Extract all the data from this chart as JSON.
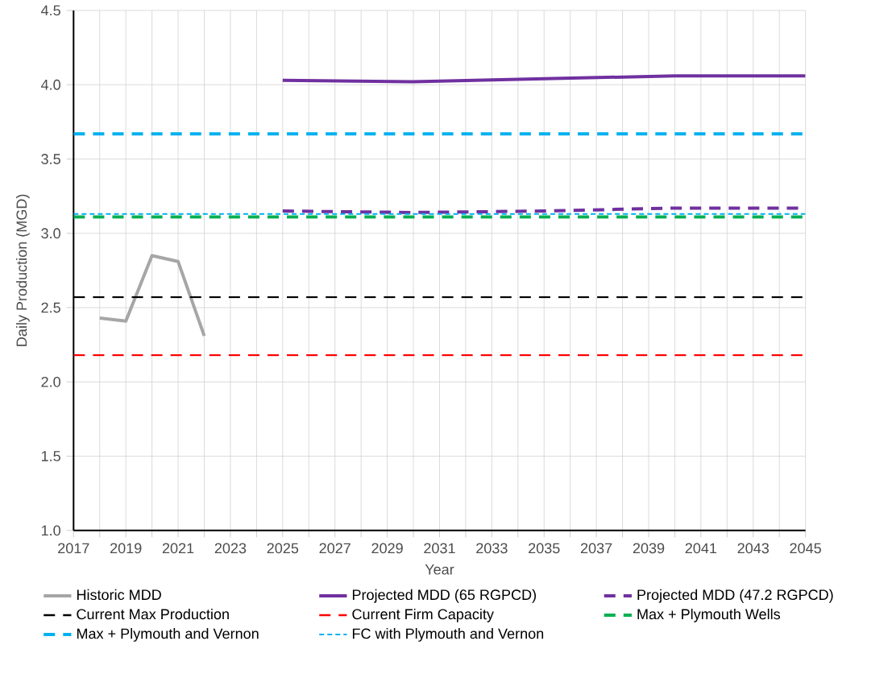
{
  "chart_data": {
    "type": "line",
    "xlabel": "Year",
    "ylabel": "Daily Production (MGD)",
    "xlim": [
      2017,
      2045
    ],
    "ylim": [
      1.0,
      4.5
    ],
    "xticks": [
      2017,
      {
        "value": 2018,
        "label": null
      },
      2019,
      {
        "value": 2020,
        "label": null
      },
      2021,
      {
        "value": 2022,
        "label": null
      },
      2023,
      {
        "value": 2024,
        "label": null
      },
      2025,
      {
        "value": 2026,
        "label": null
      },
      2027,
      {
        "value": 2028,
        "label": null
      },
      2029,
      {
        "value": 2030,
        "label": null
      },
      2031,
      {
        "value": 2032,
        "label": null
      },
      2033,
      {
        "value": 2034,
        "label": null
      },
      2035,
      {
        "value": 2036,
        "label": null
      },
      2037,
      {
        "value": 2038,
        "label": null
      },
      2039,
      {
        "value": 2040,
        "label": null
      },
      2041,
      {
        "value": 2042,
        "label": null
      },
      2043,
      {
        "value": 2044,
        "label": null
      },
      2045
    ],
    "yticks": [
      {
        "value": 1.0,
        "label": "1.0"
      },
      1.5,
      {
        "value": 2.0,
        "label": "2.0"
      },
      2.5,
      {
        "value": 3.0,
        "label": "3.0"
      },
      3.5,
      {
        "value": 4.0,
        "label": "4.0"
      },
      4.5
    ],
    "grid": true,
    "legend": "bottom",
    "marker": "none",
    "series": [
      {
        "name": "Historic MDD",
        "color": "#a6a6a6",
        "x": [
          2018,
          2019,
          2020,
          2021,
          2022
        ],
        "values": [
          2.43,
          2.41,
          2.85,
          2.81,
          2.31
        ],
        "line_style": "solid"
      },
      {
        "name": "Projected MDD (65 RGPCD)",
        "color": "#7030a0",
        "x": [
          2025,
          2030,
          2035,
          2040,
          2045
        ],
        "values": [
          4.03,
          4.02,
          4.04,
          4.06,
          4.06
        ],
        "line_style": "solid"
      },
      {
        "name": "Projected MDD (47.2 RGPCD)",
        "color": "#7030a0",
        "x": [
          2025,
          2030,
          2035,
          2040,
          2045
        ],
        "values": [
          3.15,
          3.14,
          3.15,
          3.17,
          3.17
        ],
        "line_style": "dashed"
      }
    ],
    "ref_lines": [
      {
        "axis": "y",
        "value": 2.57,
        "label": "Current Max Production",
        "color": "#000000",
        "line_style": "dashed"
      },
      {
        "axis": "y",
        "value": 2.18,
        "label": "Current Firm Capacity",
        "color": "#ff0000",
        "line_style": "dashed"
      },
      {
        "axis": "y",
        "value": 3.11,
        "label": "Max + Plymouth Wells",
        "color": "#00b050",
        "line_style": "dashed"
      },
      {
        "axis": "y",
        "value": 3.67,
        "label": "Max + Plymouth and Vernon",
        "color": "#00b0f0",
        "line_style": "dashed"
      },
      {
        "axis": "y",
        "value": 3.13,
        "label": "FC with Plymouth and Vernon",
        "color": "#00b0f0",
        "line_style": "dotted"
      }
    ]
  }
}
